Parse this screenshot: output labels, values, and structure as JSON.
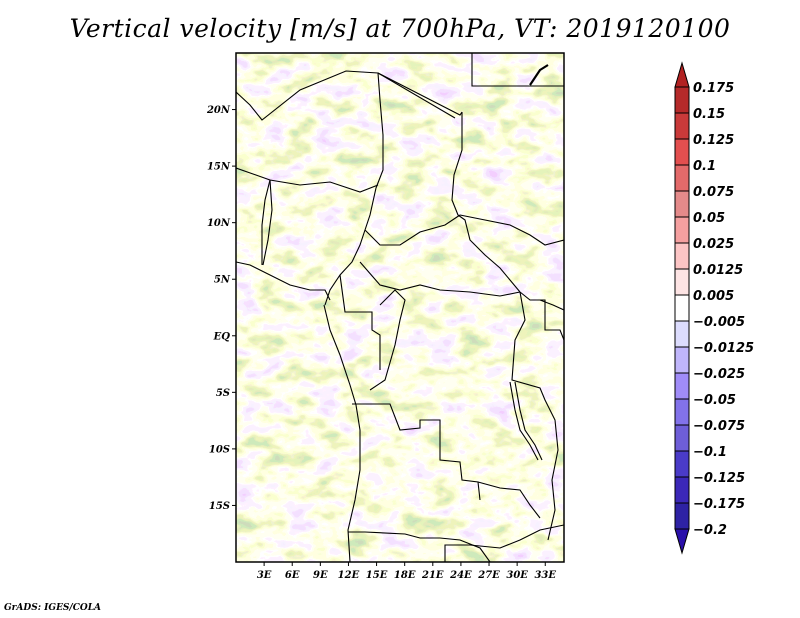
{
  "title": "Vertical velocity [m/s] at 700hPa, VT: 2019120100",
  "credit": "GrADS: IGES/COLA",
  "map": {
    "region": "Central Africa",
    "variable": "Vertical velocity",
    "units": "m/s",
    "level": "700hPa",
    "valid_time": "2019120100",
    "lon_range": [
      0,
      35
    ],
    "lat_range": [
      -20,
      25
    ],
    "lat_ticks": [
      {
        "value": 20,
        "label": "20N"
      },
      {
        "value": 15,
        "label": "15N"
      },
      {
        "value": 10,
        "label": "10N"
      },
      {
        "value": 5,
        "label": "5N"
      },
      {
        "value": 0,
        "label": "EQ"
      },
      {
        "value": -5,
        "label": "5S"
      },
      {
        "value": -10,
        "label": "10S"
      },
      {
        "value": -15,
        "label": "15S"
      }
    ],
    "lon_ticks": [
      {
        "value": 3,
        "label": "3E"
      },
      {
        "value": 6,
        "label": "6E"
      },
      {
        "value": 9,
        "label": "9E"
      },
      {
        "value": 12,
        "label": "12E"
      },
      {
        "value": 15,
        "label": "15E"
      },
      {
        "value": 18,
        "label": "18E"
      },
      {
        "value": 21,
        "label": "21E"
      },
      {
        "value": 24,
        "label": "24E"
      },
      {
        "value": 27,
        "label": "27E"
      },
      {
        "value": 30,
        "label": "30E"
      },
      {
        "value": 33,
        "label": "33E"
      }
    ]
  },
  "colorbar": {
    "labels": [
      "0.175",
      "0.15",
      "0.125",
      "0.1",
      "0.075",
      "0.05",
      "0.025",
      "0.0125",
      "0.005",
      "−0.005",
      "−0.0125",
      "−0.025",
      "−0.05",
      "−0.075",
      "−0.1",
      "−0.125",
      "−0.175",
      "−0.2"
    ],
    "colors_top_to_bottom": [
      "#b22222",
      "#b52a2a",
      "#c93a3a",
      "#e34f4f",
      "#e36a6a",
      "#e48a8a",
      "#f5a0a0",
      "#fcc5c5",
      "#fde4e4",
      "#ffffff",
      "#dcdcfd",
      "#c0b6fb",
      "#a08cf8",
      "#8272ea",
      "#6e5ed8",
      "#4a3bc8",
      "#3b28b8",
      "#2e22a4",
      "#2a10aa"
    ]
  }
}
